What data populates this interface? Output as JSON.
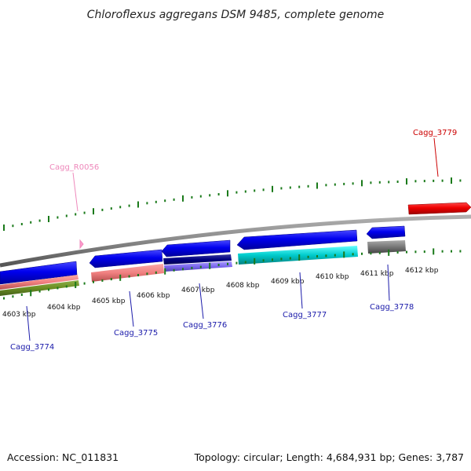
{
  "title": "Chloroflexus aggregans DSM 9485, complete genome",
  "footer": {
    "accession": "Accession: NC_011831",
    "summary": "Topology: circular; Length: 4,684,931 bp; Genes: 3,787"
  },
  "tick_labels": [
    "4603 kbp",
    "4604 kbp",
    "4605 kbp",
    "4606 kbp",
    "4607 kbp",
    "4608 kbp",
    "4609 kbp",
    "4610 kbp",
    "4611 kbp",
    "4612 kbp"
  ],
  "gene_labels": {
    "cagg_3779": "Cagg_3779",
    "cagg_r0056": "Cagg_R0056",
    "cagg_3774": "Cagg_3774",
    "cagg_3775": "Cagg_3775",
    "cagg_3776": "Cagg_3776",
    "cagg_3777": "Cagg_3777",
    "cagg_3778": "Cagg_3778"
  },
  "colors": {
    "forward_cds": "#0000ee",
    "reverse_cds": "#ee0000",
    "rna": "#ff99cc",
    "tick": "#1a7a1a",
    "backbone": "#888888",
    "label_blue": "#1a1aaa",
    "label_red": "#cc0000",
    "label_pink": "#ee88bb",
    "salmon": "#f08080",
    "olive": "#6b8e23",
    "navy": "#000080",
    "slate": "#7b68ee",
    "cyan": "#00cccc",
    "gray": "#777777"
  }
}
